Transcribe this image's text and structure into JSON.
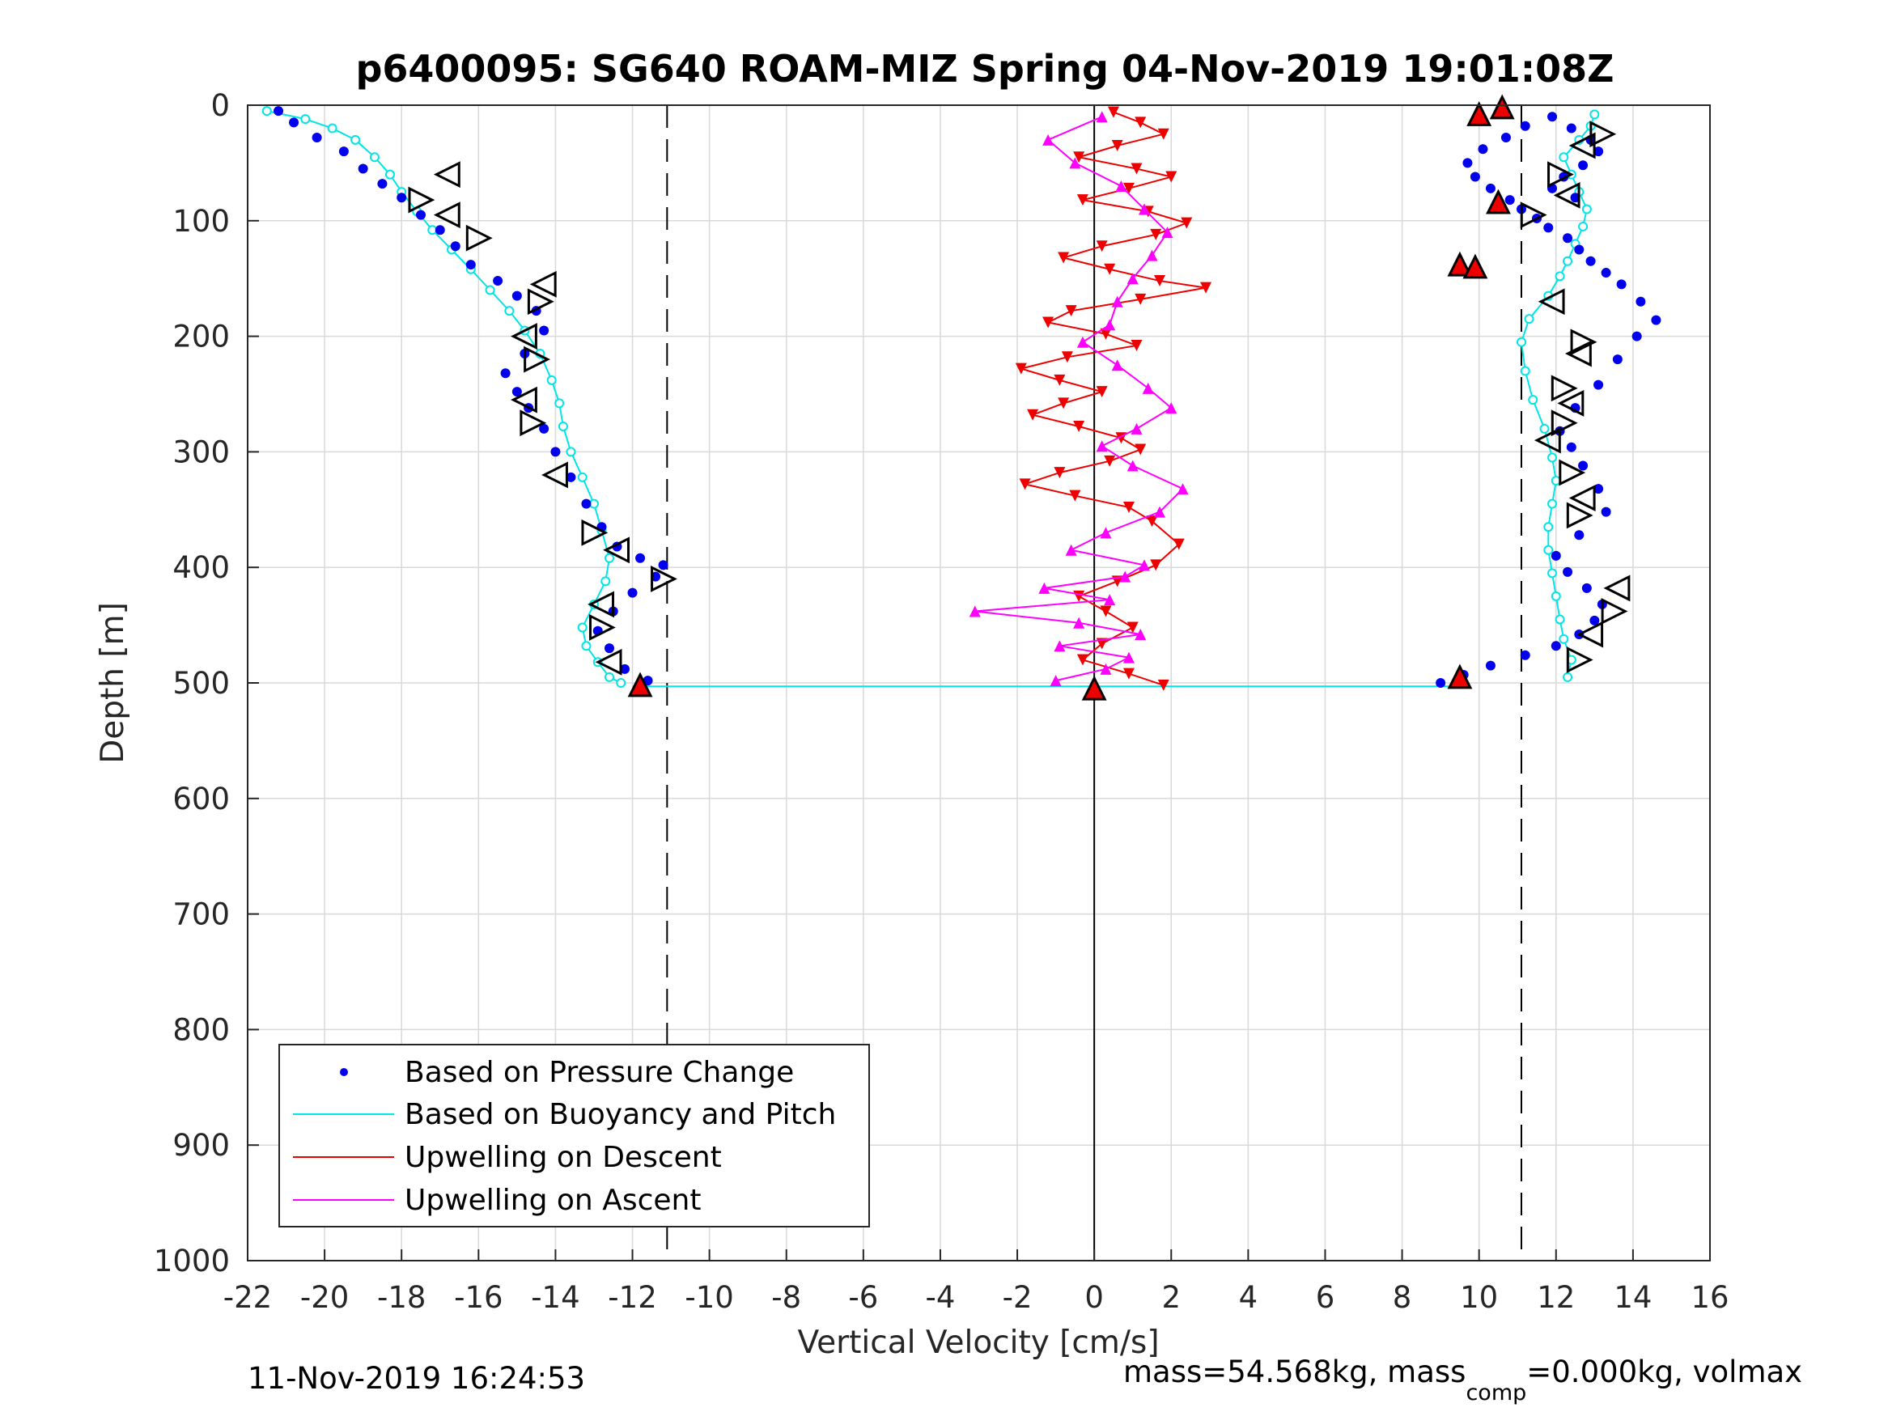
{
  "chart_data": {
    "type": "scatter",
    "title": "p6400095: SG640 ROAM-MIZ Spring 04-Nov-2019 19:01:08Z",
    "xlabel": "Vertical Velocity [cm/s]",
    "ylabel": "Depth [m]",
    "xlim": [
      -22,
      16
    ],
    "ylim": [
      0,
      1000
    ],
    "y_reversed": true,
    "grid": true,
    "x_ticks": [
      "-22",
      "-20",
      "-18",
      "-16",
      "-14",
      "-12",
      "-10",
      "-8",
      "-6",
      "-4",
      "-2",
      "0",
      "2",
      "4",
      "6",
      "8",
      "10",
      "12",
      "14",
      "16"
    ],
    "y_ticks": [
      "0",
      "100",
      "200",
      "300",
      "400",
      "500",
      "600",
      "700",
      "800",
      "900",
      "1000"
    ],
    "reference_lines": [
      {
        "kind": "dashed",
        "x": -11.1
      },
      {
        "kind": "solid",
        "x": 0
      },
      {
        "kind": "dashed",
        "x": 11.1
      },
      {
        "kind": "solid-horizontal",
        "y": 503,
        "color": "#00e5e5"
      }
    ],
    "legend_position": "bottom-left",
    "legend": [
      {
        "label": "Based on Pressure Change",
        "color": "#0000ee",
        "marker": "dot"
      },
      {
        "label": "Based on Buoyancy and Pitch",
        "color": "#00e5e5",
        "marker": "line"
      },
      {
        "label": "Upwelling on Descent",
        "color": "#ee0000",
        "marker": "line"
      },
      {
        "label": "Upwelling on Ascent",
        "color": "#ff00ff",
        "marker": "line"
      }
    ],
    "series": [
      {
        "name": "Based on Pressure Change",
        "color": "#0000ee",
        "descent": {
          "x": [
            -21.2,
            -20.8,
            -20.2,
            -19.5,
            -19.0,
            -18.5,
            -18.0,
            -17.5,
            -17.0,
            -16.6,
            -16.2,
            -15.5,
            -15.0,
            -14.5,
            -14.3,
            -14.8,
            -15.3,
            -15.0,
            -14.7,
            -14.3,
            -14.0,
            -13.6,
            -13.2,
            -12.8,
            -12.4,
            -11.8,
            -11.2,
            -11.4,
            -12.0,
            -12.5,
            -12.9,
            -12.6,
            -12.2,
            -11.6
          ],
          "y": [
            5,
            15,
            28,
            40,
            55,
            68,
            80,
            95,
            108,
            122,
            138,
            152,
            165,
            178,
            195,
            215,
            232,
            248,
            262,
            280,
            300,
            322,
            345,
            365,
            382,
            392,
            398,
            408,
            422,
            438,
            455,
            470,
            488,
            498
          ]
        },
        "ascent": {
          "x": [
            9.0,
            9.6,
            10.3,
            11.2,
            12.0,
            12.6,
            13.0,
            13.2,
            12.8,
            12.3,
            12.0,
            12.6,
            13.3,
            13.1,
            12.7,
            12.4,
            12.1,
            12.5,
            13.1,
            13.6,
            14.1,
            14.6,
            14.2,
            13.7,
            13.3,
            12.9,
            12.6,
            12.3,
            11.8,
            11.5,
            11.1,
            10.8,
            10.3,
            9.9,
            9.7,
            10.1,
            10.7,
            11.2,
            11.9,
            12.4,
            12.9,
            13.1,
            12.7,
            12.2,
            11.9,
            12.5
          ],
          "y": [
            500,
            493,
            485,
            476,
            468,
            458,
            446,
            432,
            418,
            404,
            390,
            372,
            352,
            332,
            312,
            296,
            282,
            262,
            242,
            220,
            200,
            186,
            170,
            155,
            145,
            135,
            125,
            115,
            106,
            98,
            90,
            82,
            72,
            62,
            50,
            38,
            28,
            18,
            10,
            20,
            30,
            40,
            52,
            62,
            72,
            80
          ]
        }
      },
      {
        "name": "Based on Buoyancy and Pitch",
        "color": "#00e5e5",
        "descent": {
          "x": [
            -21.5,
            -20.5,
            -19.8,
            -19.2,
            -18.7,
            -18.3,
            -18.0,
            -17.6,
            -17.2,
            -16.7,
            -16.2,
            -15.7,
            -15.2,
            -14.8,
            -14.4,
            -14.1,
            -13.9,
            -13.8,
            -13.6,
            -13.3,
            -13.0,
            -12.8,
            -12.6,
            -12.7,
            -13.0,
            -13.3,
            -13.2,
            -12.9,
            -12.6,
            -12.3
          ],
          "y": [
            5,
            12,
            20,
            30,
            45,
            60,
            75,
            92,
            108,
            125,
            142,
            160,
            178,
            195,
            215,
            238,
            258,
            278,
            300,
            322,
            345,
            368,
            392,
            412,
            432,
            452,
            468,
            482,
            495,
            500
          ]
        },
        "ascent": {
          "x": [
            12.3,
            12.4,
            12.2,
            12.1,
            12.0,
            11.9,
            11.8,
            11.8,
            11.9,
            12.0,
            11.9,
            11.7,
            11.4,
            11.2,
            11.1,
            11.3,
            11.8,
            12.1,
            12.3,
            12.5,
            12.7,
            12.8,
            12.6,
            12.4,
            12.2,
            12.6,
            12.9,
            13.0
          ],
          "y": [
            495,
            480,
            462,
            445,
            425,
            405,
            385,
            365,
            345,
            325,
            305,
            280,
            255,
            230,
            205,
            185,
            165,
            148,
            135,
            120,
            105,
            90,
            75,
            60,
            45,
            30,
            18,
            8
          ]
        }
      },
      {
        "name": "Upwelling on Descent",
        "color": "#ee0000",
        "x": [
          0.5,
          1.2,
          1.8,
          0.6,
          -0.4,
          1.1,
          2.0,
          0.9,
          -0.3,
          1.4,
          2.4,
          1.6,
          0.2,
          -0.8,
          0.4,
          1.7,
          2.9,
          1.2,
          -0.6,
          -1.2,
          0.3,
          1.1,
          -0.7,
          -1.9,
          -0.9,
          0.2,
          -0.8,
          -1.6,
          -0.4,
          0.7,
          1.2,
          0.4,
          -0.9,
          -1.8,
          -0.5,
          0.9,
          1.5,
          2.2,
          1.6,
          0.6,
          -0.4,
          0.3,
          1.0,
          0.2,
          -0.3,
          0.9,
          1.8
        ],
        "y": [
          6,
          15,
          25,
          35,
          45,
          55,
          62,
          72,
          82,
          92,
          102,
          112,
          122,
          132,
          142,
          152,
          158,
          168,
          178,
          188,
          198,
          208,
          218,
          228,
          238,
          248,
          258,
          268,
          278,
          288,
          298,
          308,
          318,
          328,
          338,
          348,
          360,
          380,
          398,
          412,
          425,
          438,
          452,
          466,
          480,
          492,
          502
        ]
      },
      {
        "name": "Upwelling on Ascent",
        "color": "#ff00ff",
        "x": [
          -1.0,
          0.3,
          0.9,
          -0.9,
          1.2,
          -0.4,
          -3.1,
          0.4,
          -1.3,
          0.8,
          1.3,
          -0.6,
          0.3,
          1.7,
          2.3,
          1.0,
          0.2,
          1.1,
          2.0,
          1.4,
          0.6,
          -0.3,
          0.4,
          0.6,
          1.0,
          1.5,
          1.9,
          1.3,
          0.7,
          -0.5,
          -1.2,
          0.2
        ],
        "y": [
          498,
          488,
          478,
          468,
          458,
          448,
          438,
          428,
          418,
          408,
          398,
          385,
          370,
          352,
          332,
          312,
          295,
          280,
          262,
          245,
          225,
          205,
          190,
          170,
          150,
          130,
          110,
          90,
          70,
          50,
          30,
          10
        ]
      }
    ],
    "markers": {
      "triangles_open_desc": [
        [
          -16.8,
          60
        ],
        [
          -17.5,
          82
        ],
        [
          -16.8,
          95
        ],
        [
          -16.0,
          115
        ],
        [
          -14.3,
          155
        ],
        [
          -14.4,
          170
        ],
        [
          -14.8,
          200
        ],
        [
          -14.5,
          220
        ],
        [
          -14.8,
          255
        ],
        [
          -14.6,
          275
        ],
        [
          -14.0,
          320
        ],
        [
          -13.0,
          370
        ],
        [
          -12.4,
          385
        ],
        [
          -11.2,
          410
        ],
        [
          -12.8,
          432
        ],
        [
          -12.8,
          452
        ],
        [
          -12.6,
          482
        ]
      ],
      "triangles_open_asc": [
        [
          12.6,
          480
        ],
        [
          12.9,
          458
        ],
        [
          13.5,
          438
        ],
        [
          13.6,
          418
        ],
        [
          12.6,
          355
        ],
        [
          12.7,
          340
        ],
        [
          12.4,
          318
        ],
        [
          11.8,
          290
        ],
        [
          12.2,
          275
        ],
        [
          12.4,
          258
        ],
        [
          12.2,
          245
        ],
        [
          12.6,
          215
        ],
        [
          12.7,
          205
        ],
        [
          11.9,
          170
        ],
        [
          11.4,
          95
        ],
        [
          12.3,
          78
        ],
        [
          12.1,
          60
        ],
        [
          12.7,
          35
        ],
        [
          13.2,
          25
        ]
      ],
      "triangles_red": [
        [
          -11.8,
          502
        ],
        [
          9.5,
          495
        ],
        [
          9.5,
          138
        ],
        [
          9.9,
          140
        ],
        [
          10.5,
          84
        ],
        [
          10.0,
          8
        ],
        [
          10.6,
          2
        ],
        [
          0.0,
          505
        ]
      ]
    },
    "footer_left": "11-Nov-2019 16:24:53",
    "footer_right_a": "mass=54.568kg, mass",
    "footer_right_sub": "comp",
    "footer_right_b": "=0.000kg, volmax"
  }
}
